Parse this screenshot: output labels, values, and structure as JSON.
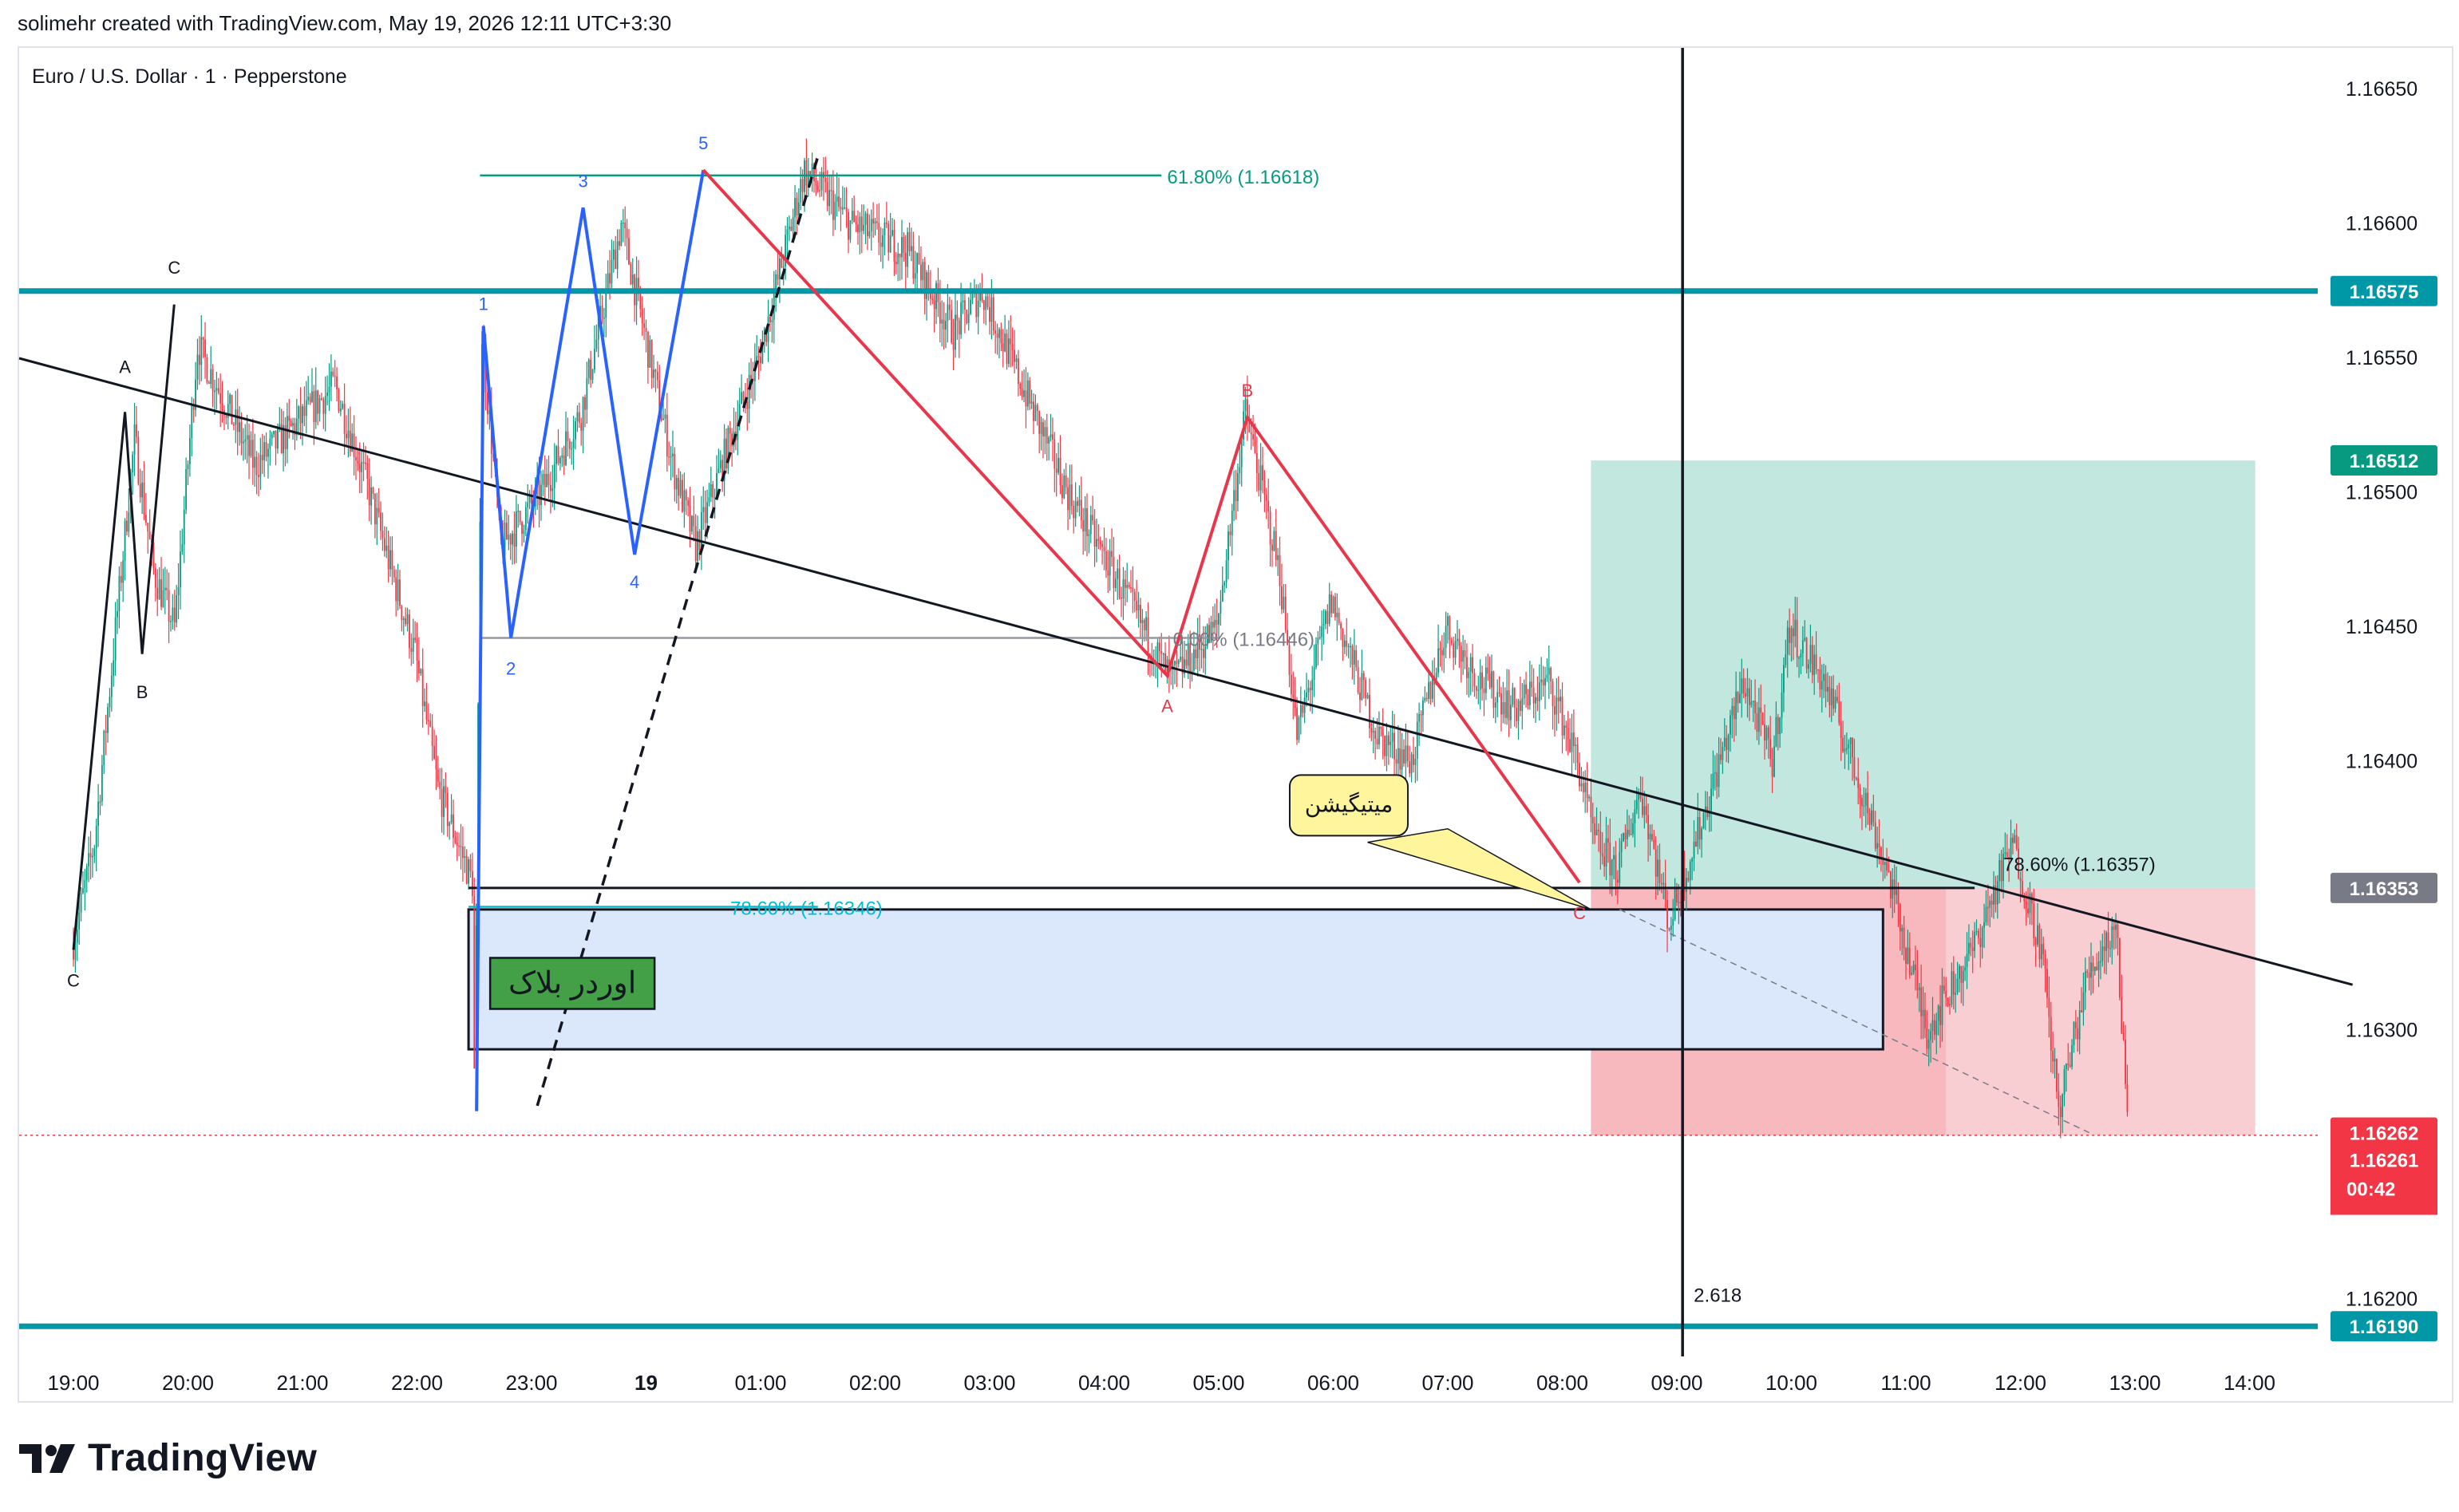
{
  "header": {
    "credit": "solimehr created with TradingView.com, May 19, 2026 12:11 UTC+3:30"
  },
  "logo": {
    "text": "TradingView",
    "icon": "tradingview-logo-icon"
  },
  "colors": {
    "up": "#089981",
    "down": "#f23645",
    "teal": "#0097a7",
    "blue": "#2962ff",
    "red": "#e8374a",
    "black": "#131722",
    "fib_green": "#089981",
    "fib_cyan": "#00bcd4",
    "order_block": "#dbe8fb",
    "tp_zone": "#bfe6dd",
    "sl_zone": "#f8c9cd"
  },
  "chart_data": {
    "type": "candlestick",
    "title": "Euro / U.S. Dollar · 1 · Pepperstone",
    "y_axis": {
      "ticks": [
        "1.16650",
        "1.16600",
        "1.16550",
        "1.16500",
        "1.16450",
        "1.16400",
        "1.16300",
        "1.16200"
      ],
      "ylim": [
        1.1615,
        1.1668
      ]
    },
    "x_axis": {
      "ticks": [
        "19:00",
        "20:00",
        "21:00",
        "22:00",
        "23:00",
        "19",
        "01:00",
        "02:00",
        "03:00",
        "04:00",
        "05:00",
        "06:00",
        "07:00",
        "08:00",
        "09:00",
        "10:00",
        "11:00",
        "12:00",
        "13:00",
        "14:00"
      ]
    },
    "price_labels": [
      {
        "value": "1.16575",
        "color": "#0097a7"
      },
      {
        "value": "1.16512",
        "color": "#089981"
      },
      {
        "value": "1.16353",
        "color": "#787b86"
      },
      {
        "value": "1.16262",
        "color": "#f23645"
      },
      {
        "value": "1.16261",
        "color": "#f23645"
      },
      {
        "value": "00:42",
        "color": "#f23645"
      },
      {
        "value": "1.16190",
        "color": "#0097a7"
      }
    ],
    "horizontal_levels": [
      {
        "price": 1.16575,
        "color": "#0097a7"
      },
      {
        "price": 1.1619,
        "color": "#0097a7"
      }
    ],
    "fib_labels": [
      {
        "text": "61.80% (1.16618)",
        "color": "#089981"
      },
      {
        "text": "0.00% (1.16446)",
        "color": "#787b86"
      },
      {
        "text": "78.60% (1.16346)",
        "color": "#00bcd4"
      },
      {
        "text": "78.60% (1.16357)",
        "color": "#131722"
      }
    ],
    "wave_labels": [
      {
        "text": "A",
        "color": "#131722"
      },
      {
        "text": "B",
        "color": "#131722"
      },
      {
        "text": "C",
        "color": "#131722"
      },
      {
        "text": "C",
        "color": "#131722"
      },
      {
        "text": "1",
        "color": "#2962ff"
      },
      {
        "text": "2",
        "color": "#2962ff"
      },
      {
        "text": "3",
        "color": "#2962ff"
      },
      {
        "text": "4",
        "color": "#2962ff"
      },
      {
        "text": "5",
        "color": "#2962ff"
      },
      {
        "text": "A",
        "color": "#e8374a"
      },
      {
        "text": "B",
        "color": "#e8374a"
      },
      {
        "text": "C",
        "color": "#e8374a"
      }
    ],
    "annotations": [
      {
        "text": "میتیگیشن",
        "kind": "callout"
      },
      {
        "text": "اوردر بلاک",
        "kind": "box-label"
      },
      {
        "text": "2.618",
        "kind": "vertical-line-label"
      }
    ],
    "last_price": 1.16261,
    "grid": false
  }
}
